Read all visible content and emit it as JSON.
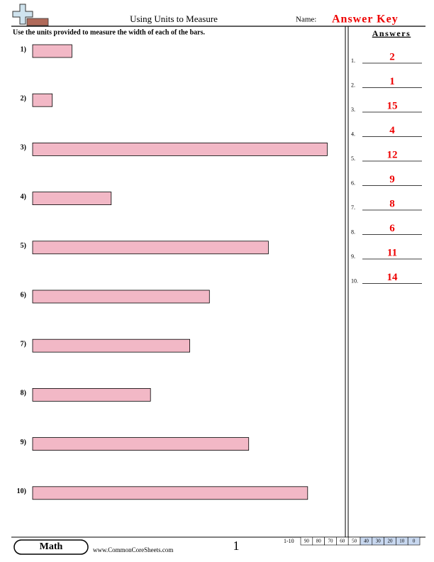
{
  "header": {
    "title": "Using Units to Measure",
    "name_label": "Name:",
    "answer_key": "Answer Key"
  },
  "instructions": "Use the units provided to measure the width of each of the bars.",
  "questions": [
    {
      "label": "1)"
    },
    {
      "label": "2)"
    },
    {
      "label": "3)"
    },
    {
      "label": "4)"
    },
    {
      "label": "5)"
    },
    {
      "label": "6)"
    },
    {
      "label": "7)"
    },
    {
      "label": "8)"
    },
    {
      "label": "9)"
    },
    {
      "label": "10)"
    }
  ],
  "answers": {
    "title": "Answers",
    "items": [
      {
        "label": "1.",
        "value": 2
      },
      {
        "label": "2.",
        "value": 1
      },
      {
        "label": "3.",
        "value": 15
      },
      {
        "label": "4.",
        "value": 4
      },
      {
        "label": "5.",
        "value": 12
      },
      {
        "label": "6.",
        "value": 9
      },
      {
        "label": "7.",
        "value": 8
      },
      {
        "label": "8.",
        "value": 6
      },
      {
        "label": "9.",
        "value": 11
      },
      {
        "label": "10.",
        "value": 14
      }
    ]
  },
  "footer": {
    "subject": "Math",
    "website": "www.CommonCoreSheets.com",
    "page": 1,
    "score_range": "1-10",
    "scores": [
      90,
      80,
      70,
      60,
      50,
      40,
      30,
      20,
      10,
      0
    ]
  }
}
